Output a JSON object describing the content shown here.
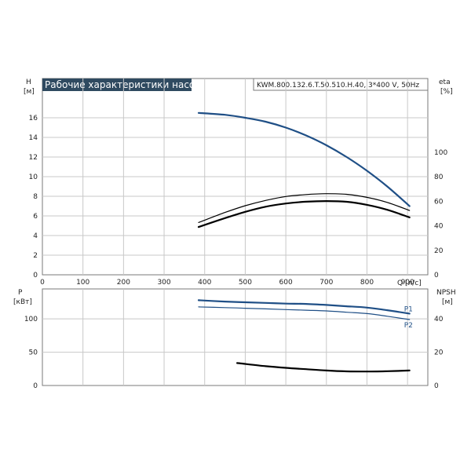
{
  "header": {
    "title": "Рабочие характеристики насоса",
    "model": "KWM.800.132.6.T.50.510.H.40, 3*400 V, 50Hz"
  },
  "colors": {
    "title_bg": "#2f4a60",
    "head_curve": "#1f4f86",
    "power_curve": "#1f4f86",
    "black_curve": "#000000",
    "grid": "#c8c8c8",
    "frame": "#7a7a7a"
  },
  "axes": {
    "top_left_label": "H",
    "top_left_unit": "[м]",
    "top_right_label": "eta",
    "top_right_unit": "[%]",
    "x_label": "Q [л/с]",
    "bottom_left_label": "P",
    "bottom_left_unit": "[кВт]",
    "bottom_right_label": "NPSH",
    "bottom_right_unit": "[м]"
  },
  "chart_data": [
    {
      "type": "line",
      "panel": "top",
      "xlim": [
        0,
        950
      ],
      "ylim": [
        0,
        20
      ],
      "y2lim": [
        0,
        160
      ],
      "grid": true,
      "x_ticks": [
        "0",
        "100",
        "200",
        "300",
        "400",
        "500",
        "600",
        "700",
        "800",
        "900"
      ],
      "x_tick_values": [
        0,
        100,
        200,
        300,
        400,
        500,
        600,
        700,
        800,
        900
      ],
      "y_ticks": [
        "0",
        "2",
        "4",
        "6",
        "8",
        "10",
        "12",
        "14",
        "16"
      ],
      "y_tick_values": [
        0,
        2,
        4,
        6,
        8,
        10,
        12,
        14,
        16
      ],
      "y2_ticks": [
        "0",
        "20",
        "40",
        "60",
        "80",
        "100"
      ],
      "y2_tick_values": [
        0,
        20,
        40,
        60,
        80,
        100
      ],
      "series": [
        {
          "axis": "left",
          "color": "#1f4f86",
          "width": 2.2,
          "x": [
            385,
            450,
            500,
            550,
            600,
            650,
            700,
            750,
            800,
            850,
            905
          ],
          "y": [
            16.5,
            16.3,
            16.0,
            15.6,
            15.0,
            14.2,
            13.2,
            12.0,
            10.6,
            9.0,
            7.0
          ]
        },
        {
          "axis": "right",
          "color": "#000000",
          "width": 1.2,
          "x": [
            385,
            450,
            500,
            550,
            600,
            650,
            700,
            750,
            800,
            850,
            905
          ],
          "y": [
            42.6,
            50.8,
            56.3,
            60.6,
            63.8,
            65.4,
            66.1,
            65.6,
            63.1,
            59.0,
            52.4
          ]
        },
        {
          "axis": "right",
          "color": "#000000",
          "width": 2.2,
          "x": [
            385,
            450,
            500,
            550,
            600,
            650,
            700,
            750,
            800,
            850,
            905
          ],
          "y": [
            39.0,
            46.2,
            51.3,
            55.5,
            58.1,
            59.6,
            60.1,
            59.5,
            57.0,
            53.0,
            46.8
          ]
        }
      ]
    },
    {
      "type": "line",
      "panel": "bottom",
      "xlim": [
        0,
        950
      ],
      "ylim": [
        0,
        145
      ],
      "y2lim": [
        0,
        58
      ],
      "grid": true,
      "y_ticks": [
        "0",
        "50",
        "100"
      ],
      "y_tick_values": [
        0,
        50,
        100
      ],
      "y2_ticks": [
        "0",
        "20",
        "40"
      ],
      "y2_tick_values": [
        0,
        20,
        40
      ],
      "series": [
        {
          "name": "P1",
          "axis": "left",
          "color": "#1f4f86",
          "width": 2.2,
          "x": [
            385,
            450,
            500,
            550,
            600,
            650,
            700,
            750,
            800,
            850,
            905
          ],
          "y": [
            128,
            126,
            125,
            124,
            123,
            122.5,
            121,
            119,
            117,
            113,
            108
          ]
        },
        {
          "name": "P2",
          "axis": "left",
          "color": "#1f4f86",
          "width": 1.2,
          "x": [
            385,
            450,
            500,
            550,
            600,
            650,
            700,
            750,
            800,
            850,
            905
          ],
          "y": [
            118,
            117,
            116,
            115,
            114,
            113,
            112,
            110,
            108,
            104,
            99
          ]
        },
        {
          "axis": "right",
          "color": "#000000",
          "width": 2.2,
          "x": [
            480,
            550,
            600,
            650,
            700,
            750,
            800,
            850,
            905
          ],
          "y": [
            13.5,
            11.6,
            10.6,
            9.8,
            9.0,
            8.5,
            8.4,
            8.6,
            9.0
          ]
        }
      ]
    }
  ]
}
